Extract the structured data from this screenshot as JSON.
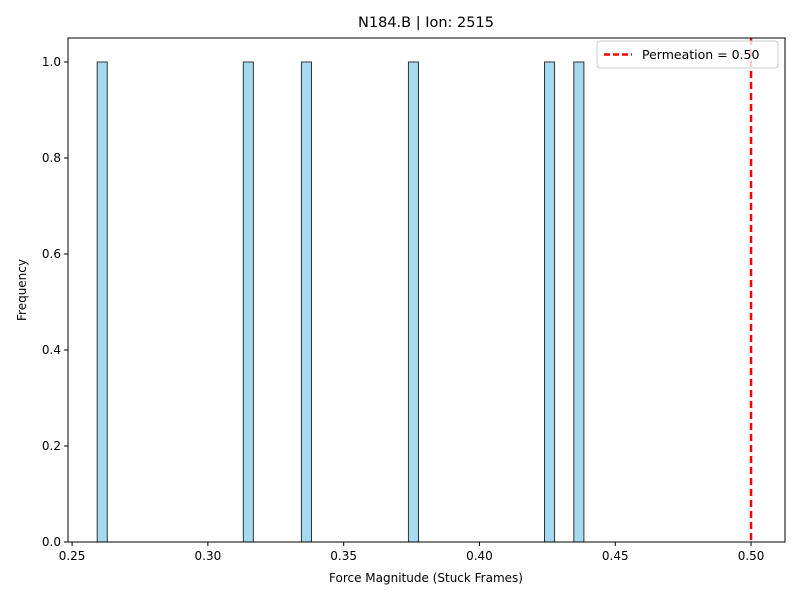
{
  "chart_data": {
    "type": "bar",
    "title": "N184.B | Ion: 2515",
    "xlabel": "Force Magnitude (Stuck Frames)",
    "ylabel": "Frequency",
    "xlim": [
      0.2485,
      0.5125
    ],
    "ylim": [
      0,
      1.05
    ],
    "xticks": [
      0.25,
      0.3,
      0.35,
      0.4,
      0.45,
      0.5
    ],
    "xtick_labels": [
      "0.25",
      "0.30",
      "0.35",
      "0.40",
      "0.45",
      "0.50"
    ],
    "yticks": [
      0.0,
      0.2,
      0.4,
      0.6,
      0.8,
      1.0
    ],
    "ytick_labels": [
      "0.0",
      "0.2",
      "0.4",
      "0.6",
      "0.8",
      "1.0"
    ],
    "bin_width": 0.0037,
    "bars": [
      {
        "x": 0.2611,
        "value": 1
      },
      {
        "x": 0.3149,
        "value": 1
      },
      {
        "x": 0.3363,
        "value": 1
      },
      {
        "x": 0.3757,
        "value": 1
      },
      {
        "x": 0.4258,
        "value": 1
      },
      {
        "x": 0.4366,
        "value": 1
      }
    ],
    "bar_color": "#87CEEB",
    "bar_edge_color": "#333333",
    "threshold_line": {
      "x": 0.5,
      "label": "Permeation = 0.50",
      "color": "#ff0000"
    },
    "legend": {
      "position": "top-right",
      "entries": [
        "Permeation = 0.50"
      ]
    },
    "grid": false
  }
}
